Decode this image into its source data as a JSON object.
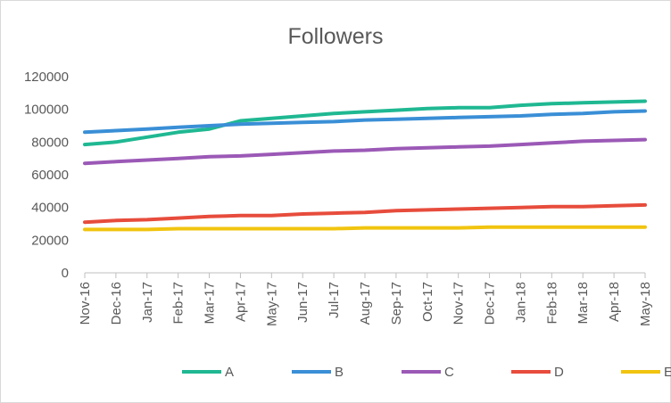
{
  "chart_data": {
    "type": "line",
    "title": "Followers",
    "xlabel": "",
    "ylabel": "",
    "ylim": [
      0,
      120000
    ],
    "yticks": [
      0,
      20000,
      40000,
      60000,
      80000,
      100000,
      120000
    ],
    "categories": [
      "Nov-16",
      "Dec-16",
      "Jan-17",
      "Feb-17",
      "Mar-17",
      "Apr-17",
      "May-17",
      "Jun-17",
      "Jul-17",
      "Aug-17",
      "Sep-17",
      "Oct-17",
      "Nov-17",
      "Dec-17",
      "Jan-18",
      "Feb-18",
      "Mar-18",
      "Apr-18",
      "May-18"
    ],
    "grid": false,
    "legend": "bottom",
    "series": [
      {
        "name": "A",
        "color": "#1fb892",
        "values": [
          78500,
          80000,
          83000,
          86000,
          88000,
          93000,
          94500,
          96000,
          97500,
          98500,
          99500,
          100500,
          101000,
          101000,
          102500,
          103500,
          104000,
          104500,
          105000
        ]
      },
      {
        "name": "B",
        "color": "#3a8fd6",
        "values": [
          86000,
          87000,
          88000,
          89000,
          90000,
          91000,
          91500,
          92000,
          92500,
          93500,
          94000,
          94500,
          95000,
          95500,
          96000,
          97000,
          97500,
          98500,
          99000
        ]
      },
      {
        "name": "C",
        "color": "#9b59b6",
        "values": [
          67000,
          68000,
          69000,
          70000,
          71000,
          71500,
          72500,
          73500,
          74500,
          75000,
          76000,
          76500,
          77000,
          77500,
          78500,
          79500,
          80500,
          81000,
          81500
        ]
      },
      {
        "name": "D",
        "color": "#e74c3c",
        "values": [
          31000,
          32000,
          32500,
          33500,
          34500,
          35000,
          35000,
          36000,
          36500,
          37000,
          38000,
          38500,
          39000,
          39500,
          40000,
          40500,
          40500,
          41000,
          41500
        ]
      },
      {
        "name": "E",
        "color": "#f1c40f",
        "values": [
          26500,
          26500,
          26500,
          27000,
          27000,
          27000,
          27000,
          27000,
          27000,
          27500,
          27500,
          27500,
          27500,
          28000,
          28000,
          28000,
          28000,
          28000,
          28000
        ]
      }
    ]
  }
}
